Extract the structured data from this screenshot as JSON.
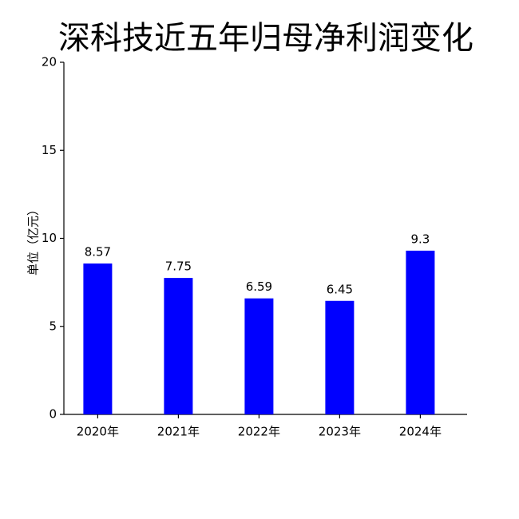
{
  "chart_data": {
    "type": "bar",
    "title": "深科技近五年归母净利润变化",
    "y_label": "单位（亿元）",
    "categories": [
      "2020年",
      "2021年",
      "2022年",
      "2023年",
      "2024年"
    ],
    "values": [
      8.57,
      7.75,
      6.59,
      6.45,
      9.3
    ],
    "color": "#0000ff",
    "ylim": [
      0,
      20
    ],
    "yticks": [
      0,
      5,
      10,
      15,
      20
    ],
    "grid": false
  }
}
